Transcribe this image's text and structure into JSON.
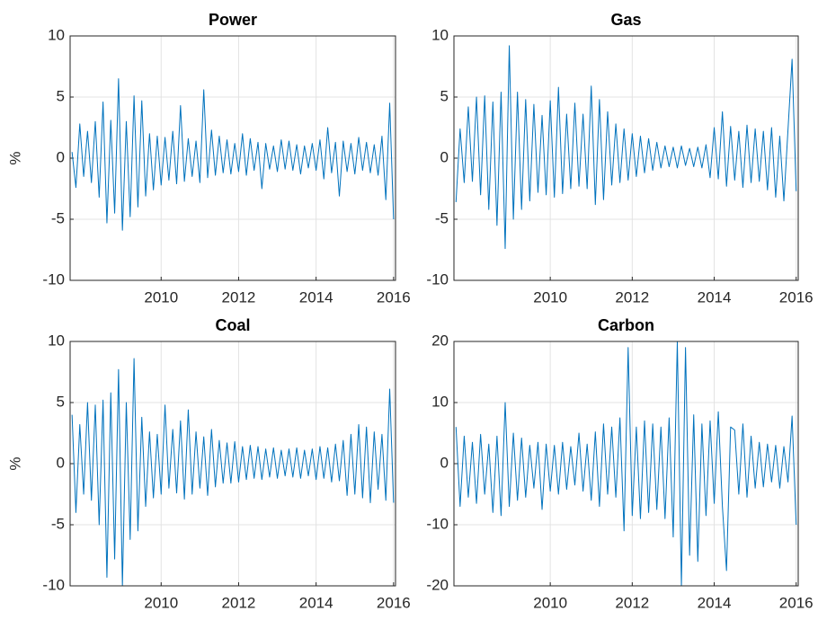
{
  "chart_data": [
    {
      "type": "line",
      "title": "Power",
      "ylabel": "%",
      "x": [
        2007.7,
        2007.8,
        2007.9,
        2008.0,
        2008.1,
        2008.2,
        2008.3,
        2008.4,
        2008.5,
        2008.6,
        2008.7,
        2008.8,
        2008.9,
        2009.0,
        2009.1,
        2009.2,
        2009.3,
        2009.4,
        2009.5,
        2009.6,
        2009.7,
        2009.8,
        2009.9,
        2010.0,
        2010.1,
        2010.2,
        2010.3,
        2010.4,
        2010.5,
        2010.6,
        2010.7,
        2010.8,
        2010.9,
        2011.0,
        2011.1,
        2011.2,
        2011.3,
        2011.4,
        2011.5,
        2011.6,
        2011.7,
        2011.8,
        2011.9,
        2012.0,
        2012.1,
        2012.2,
        2012.3,
        2012.4,
        2012.5,
        2012.6,
        2012.7,
        2012.8,
        2012.9,
        2013.0,
        2013.1,
        2013.2,
        2013.3,
        2013.4,
        2013.5,
        2013.6,
        2013.7,
        2013.8,
        2013.9,
        2014.0,
        2014.1,
        2014.2,
        2014.3,
        2014.4,
        2014.5,
        2014.6,
        2014.7,
        2014.8,
        2014.9,
        2015.0,
        2015.1,
        2015.2,
        2015.3,
        2015.4,
        2015.5,
        2015.6,
        2015.7,
        2015.8,
        2015.9,
        2016.0
      ],
      "series": [
        {
          "color": "#0072bd",
          "values": [
            0.5,
            -2.4,
            2.8,
            -1.5,
            2.2,
            -2.0,
            3.0,
            -3.2,
            4.6,
            -5.3,
            3.1,
            -4.5,
            6.5,
            -5.9,
            3.0,
            -4.8,
            5.1,
            -4.0,
            4.7,
            -3.1,
            2.0,
            -2.6,
            1.8,
            -2.2,
            1.7,
            -1.8,
            2.2,
            -2.1,
            4.3,
            -1.9,
            1.6,
            -1.5,
            1.4,
            -2.0,
            5.6,
            -1.6,
            2.3,
            -1.4,
            1.8,
            -1.2,
            1.5,
            -1.3,
            1.2,
            -1.1,
            2.0,
            -1.4,
            1.6,
            -1.0,
            1.3,
            -2.5,
            1.2,
            -0.9,
            1.0,
            -1.1,
            1.5,
            -0.9,
            1.4,
            -1.0,
            1.1,
            -1.3,
            1.0,
            -0.8,
            1.2,
            -1.0,
            1.5,
            -1.7,
            2.5,
            -1.2,
            1.3,
            -3.1,
            1.4,
            -1.1,
            1.2,
            -1.3,
            1.7,
            -1.0,
            1.3,
            -1.2,
            1.1,
            -1.4,
            1.8,
            -3.4,
            4.5,
            -5.0
          ]
        }
      ],
      "xlim": [
        2007.65,
        2016.05
      ],
      "xticks": [
        2010,
        2012,
        2014,
        2016
      ],
      "ylim": [
        -10,
        10
      ],
      "yticks": [
        -10,
        -5,
        0,
        5,
        10
      ],
      "grid": true
    },
    {
      "type": "line",
      "title": "Gas",
      "x": [
        2007.7,
        2007.8,
        2007.9,
        2008.0,
        2008.1,
        2008.2,
        2008.3,
        2008.4,
        2008.5,
        2008.6,
        2008.7,
        2008.8,
        2008.9,
        2009.0,
        2009.1,
        2009.2,
        2009.3,
        2009.4,
        2009.5,
        2009.6,
        2009.7,
        2009.8,
        2009.9,
        2010.0,
        2010.1,
        2010.2,
        2010.3,
        2010.4,
        2010.5,
        2010.6,
        2010.7,
        2010.8,
        2010.9,
        2011.0,
        2011.1,
        2011.2,
        2011.3,
        2011.4,
        2011.5,
        2011.6,
        2011.7,
        2011.8,
        2011.9,
        2012.0,
        2012.1,
        2012.2,
        2012.3,
        2012.4,
        2012.5,
        2012.6,
        2012.7,
        2012.8,
        2012.9,
        2013.0,
        2013.1,
        2013.2,
        2013.3,
        2013.4,
        2013.5,
        2013.6,
        2013.7,
        2013.8,
        2013.9,
        2014.0,
        2014.1,
        2014.2,
        2014.3,
        2014.4,
        2014.5,
        2014.6,
        2014.7,
        2014.8,
        2014.9,
        2015.0,
        2015.1,
        2015.2,
        2015.3,
        2015.4,
        2015.5,
        2015.6,
        2015.7,
        2015.8,
        2015.9,
        2016.0
      ],
      "series": [
        {
          "color": "#0072bd",
          "values": [
            -3.6,
            2.4,
            -2.0,
            4.2,
            -1.9,
            5.0,
            -3.0,
            5.1,
            -4.2,
            4.6,
            -5.5,
            5.4,
            -7.4,
            9.2,
            -5.0,
            5.4,
            -4.2,
            4.8,
            -3.5,
            4.4,
            -2.8,
            3.5,
            -3.0,
            4.7,
            -3.2,
            5.8,
            -2.9,
            3.6,
            -2.5,
            4.5,
            -2.3,
            3.6,
            -2.5,
            5.9,
            -3.8,
            4.8,
            -3.4,
            3.8,
            -2.2,
            2.8,
            -2.0,
            2.4,
            -1.8,
            2.0,
            -1.5,
            1.8,
            -1.2,
            1.6,
            -1.0,
            1.3,
            -0.8,
            1.0,
            -0.7,
            0.9,
            -0.8,
            1.0,
            -0.6,
            0.8,
            -0.7,
            0.9,
            -0.8,
            1.1,
            -1.6,
            2.5,
            -1.7,
            3.8,
            -2.3,
            2.6,
            -1.8,
            2.2,
            -2.4,
            2.7,
            -2.0,
            2.4,
            -1.9,
            2.2,
            -2.6,
            2.5,
            -3.2,
            1.8,
            -3.5,
            2.3,
            8.1,
            -2.7
          ]
        }
      ],
      "xlim": [
        2007.65,
        2016.05
      ],
      "xticks": [
        2010,
        2012,
        2014,
        2016
      ],
      "ylim": [
        -10,
        10
      ],
      "yticks": [
        -10,
        -5,
        0,
        5,
        10
      ],
      "grid": true
    },
    {
      "type": "line",
      "title": "Coal",
      "ylabel": "%",
      "x": [
        2007.7,
        2007.8,
        2007.9,
        2008.0,
        2008.1,
        2008.2,
        2008.3,
        2008.4,
        2008.5,
        2008.6,
        2008.7,
        2008.8,
        2008.9,
        2009.0,
        2009.1,
        2009.2,
        2009.3,
        2009.4,
        2009.5,
        2009.6,
        2009.7,
        2009.8,
        2009.9,
        2010.0,
        2010.1,
        2010.2,
        2010.3,
        2010.4,
        2010.5,
        2010.6,
        2010.7,
        2010.8,
        2010.9,
        2011.0,
        2011.1,
        2011.2,
        2011.3,
        2011.4,
        2011.5,
        2011.6,
        2011.7,
        2011.8,
        2011.9,
        2012.0,
        2012.1,
        2012.2,
        2012.3,
        2012.4,
        2012.5,
        2012.6,
        2012.7,
        2012.8,
        2012.9,
        2013.0,
        2013.1,
        2013.2,
        2013.3,
        2013.4,
        2013.5,
        2013.6,
        2013.7,
        2013.8,
        2013.9,
        2014.0,
        2014.1,
        2014.2,
        2014.3,
        2014.4,
        2014.5,
        2014.6,
        2014.7,
        2014.8,
        2014.9,
        2015.0,
        2015.1,
        2015.2,
        2015.3,
        2015.4,
        2015.5,
        2015.6,
        2015.7,
        2015.8,
        2015.9,
        2016.0
      ],
      "series": [
        {
          "color": "#0072bd",
          "values": [
            4.0,
            -4.0,
            3.2,
            -2.5,
            5.0,
            -3.0,
            4.8,
            -5.0,
            5.2,
            -9.3,
            5.8,
            -7.8,
            7.7,
            -10.0,
            5.0,
            -6.2,
            8.6,
            -5.5,
            3.8,
            -3.5,
            2.6,
            -2.8,
            2.4,
            -2.5,
            4.8,
            -2.0,
            2.8,
            -2.4,
            3.5,
            -2.9,
            4.4,
            -2.5,
            2.6,
            -2.0,
            2.2,
            -2.6,
            2.8,
            -1.9,
            1.9,
            -1.6,
            1.7,
            -1.6,
            1.8,
            -1.5,
            1.4,
            -1.3,
            1.5,
            -1.2,
            1.4,
            -1.3,
            1.2,
            -1.1,
            1.3,
            -1.2,
            1.1,
            -1.0,
            1.2,
            -1.1,
            1.3,
            -1.2,
            1.1,
            -1.0,
            1.2,
            -1.3,
            1.4,
            -1.2,
            1.3,
            -1.5,
            1.6,
            -1.4,
            1.9,
            -2.6,
            2.4,
            -2.5,
            3.2,
            -2.8,
            3.0,
            -3.2,
            2.6,
            -2.1,
            2.4,
            -3.0,
            6.1,
            -3.2
          ]
        }
      ],
      "xlim": [
        2007.65,
        2016.05
      ],
      "xticks": [
        2010,
        2012,
        2014,
        2016
      ],
      "ylim": [
        -10,
        10
      ],
      "yticks": [
        -10,
        -5,
        0,
        5,
        10
      ],
      "grid": true
    },
    {
      "type": "line",
      "title": "Carbon",
      "x": [
        2007.7,
        2007.8,
        2007.9,
        2008.0,
        2008.1,
        2008.2,
        2008.3,
        2008.4,
        2008.5,
        2008.6,
        2008.7,
        2008.8,
        2008.9,
        2009.0,
        2009.1,
        2009.2,
        2009.3,
        2009.4,
        2009.5,
        2009.6,
        2009.7,
        2009.8,
        2009.9,
        2010.0,
        2010.1,
        2010.2,
        2010.3,
        2010.4,
        2010.5,
        2010.6,
        2010.7,
        2010.8,
        2010.9,
        2011.0,
        2011.1,
        2011.2,
        2011.3,
        2011.4,
        2011.5,
        2011.6,
        2011.7,
        2011.8,
        2011.9,
        2012.0,
        2012.1,
        2012.2,
        2012.3,
        2012.4,
        2012.5,
        2012.6,
        2012.7,
        2012.8,
        2012.9,
        2013.0,
        2013.1,
        2013.2,
        2013.3,
        2013.4,
        2013.5,
        2013.6,
        2013.7,
        2013.8,
        2013.9,
        2014.0,
        2014.1,
        2014.2,
        2014.3,
        2014.4,
        2014.5,
        2014.6,
        2014.7,
        2014.8,
        2014.9,
        2015.0,
        2015.1,
        2015.2,
        2015.3,
        2015.4,
        2015.5,
        2015.6,
        2015.7,
        2015.8,
        2015.9,
        2016.0
      ],
      "series": [
        {
          "color": "#0072bd",
          "values": [
            6.0,
            -7.0,
            4.5,
            -5.5,
            3.5,
            -6.5,
            4.8,
            -5.0,
            3.2,
            -8.0,
            4.5,
            -8.5,
            10.0,
            -7.0,
            5.0,
            -6.0,
            4.2,
            -5.5,
            3.0,
            -4.0,
            3.5,
            -7.5,
            3.2,
            -4.5,
            3.0,
            -5.0,
            3.5,
            -4.2,
            2.8,
            -3.5,
            5.0,
            -4.5,
            3.2,
            -6.0,
            5.2,
            -7.0,
            6.5,
            -5.0,
            6.0,
            -5.5,
            7.5,
            -11.0,
            19.0,
            -8.5,
            6.0,
            -9.0,
            7.0,
            -8.0,
            6.5,
            -7.5,
            6.0,
            -9.0,
            7.5,
            -12.0,
            20.0,
            -20.0,
            19.0,
            -15.0,
            8.0,
            -16.0,
            6.5,
            -8.5,
            7.0,
            -6.5,
            8.5,
            -7.0,
            -17.5,
            6.0,
            5.5,
            -5.0,
            6.5,
            -5.5,
            4.5,
            -4.0,
            3.5,
            -3.8,
            3.2,
            -3.0,
            3.0,
            -4.0,
            2.8,
            -3.0,
            7.8,
            -10.0
          ]
        }
      ],
      "xlim": [
        2007.65,
        2016.05
      ],
      "xticks": [
        2010,
        2012,
        2014,
        2016
      ],
      "ylim": [
        -20,
        20
      ],
      "yticks": [
        -20,
        -10,
        0,
        10,
        20
      ],
      "grid": true
    }
  ]
}
